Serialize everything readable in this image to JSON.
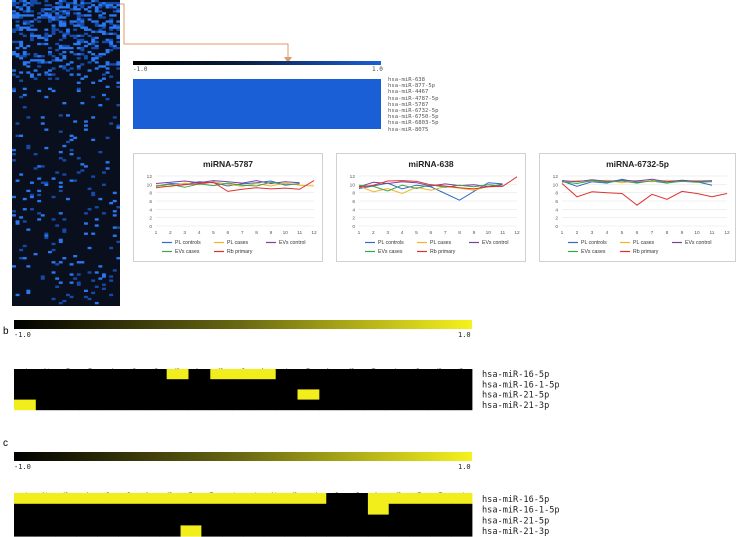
{
  "panel_b": {
    "letter": "b"
  },
  "panel_c": {
    "letter": "c"
  },
  "colors": {
    "heat_blue": "#1a5fd6",
    "heat_dark": "#0a0f1e",
    "heat_yellow": "#f2ee1c",
    "heat_black": "#000000",
    "arrow": "#e39a6a"
  },
  "chart_data": [
    {
      "type": "heatmap",
      "id": "panel-a-heatmap",
      "description_source": "large left heatmap, blue-black",
      "rows": 150,
      "cols": 30
    },
    {
      "type": "heatmap",
      "id": "panel-a-zoom",
      "scale": {
        "min_label": "-1.0",
        "max_label": "1.0"
      },
      "rows": [
        "hsa-miR-638",
        "hsa-miR-877-5p",
        "hsa-miR-4467",
        "hsa-miR-4787-5p",
        "hsa-miR-5787",
        "hsa-miR-6732-5p",
        "hsa-miR-6750-5p",
        "hsa-miR-6803-5p",
        "hsa-miR-8075"
      ]
    },
    {
      "type": "line",
      "id": "chart-5787",
      "title": "miRNA-5787",
      "x": [
        1,
        2,
        3,
        4,
        5,
        6,
        7,
        8,
        9,
        10,
        11,
        12
      ],
      "ylim": [
        0,
        12
      ],
      "yticks": [
        0,
        2,
        4,
        6,
        8,
        10,
        12
      ],
      "series": [
        {
          "name": "PL controls",
          "color": "#2f6ec2",
          "values": [
            9.5,
            10.2,
            10.0,
            10.6,
            10.4,
            9.6,
            10.1,
            10.4,
            10.8,
            9.8,
            10.2,
            null
          ]
        },
        {
          "name": "PL cases",
          "color": "#f0b429",
          "values": [
            9.8,
            9.4,
            10.3,
            9.9,
            10.6,
            10.0,
            9.5,
            10.2,
            9.6,
            10.3,
            9.8,
            9.6
          ]
        },
        {
          "name": "EVs control",
          "color": "#7b3fa0",
          "values": [
            10.2,
            10.5,
            10.8,
            10.4,
            10.9,
            10.6,
            10.3,
            10.9,
            10.2,
            10.6,
            10.4,
            null
          ]
        },
        {
          "name": "EVs cases",
          "color": "#3fa34d",
          "values": [
            9.6,
            10.0,
            9.3,
            10.1,
            9.7,
            10.3,
            9.8,
            9.6,
            10.5,
            9.9,
            10.1,
            null
          ]
        },
        {
          "name": "Rb primary",
          "color": "#e03131",
          "values": [
            9.2,
            9.6,
            9.9,
            10.2,
            10.5,
            8.3,
            8.8,
            9.2,
            8.9,
            9.1,
            8.8,
            10.9
          ]
        }
      ]
    },
    {
      "type": "line",
      "id": "chart-638",
      "title": "miRNA-638",
      "x": [
        1,
        2,
        3,
        4,
        5,
        6,
        7,
        8,
        9,
        10,
        11,
        12
      ],
      "ylim": [
        0,
        12
      ],
      "yticks": [
        0,
        2,
        4,
        6,
        8,
        10,
        12
      ],
      "series": [
        {
          "name": "PL controls",
          "color": "#2f6ec2",
          "values": [
            9.0,
            9.6,
            10.3,
            8.9,
            9.8,
            9.4,
            7.8,
            6.2,
            8.3,
            10.4,
            10.1,
            null
          ]
        },
        {
          "name": "PL cases",
          "color": "#f0b429",
          "values": [
            9.6,
            8.2,
            9.0,
            7.8,
            9.3,
            8.6,
            9.4,
            9.1,
            8.6,
            9.5,
            9.8,
            null
          ]
        },
        {
          "name": "EVs control",
          "color": "#7b3fa0",
          "values": [
            9.4,
            10.5,
            10.2,
            10.6,
            10.4,
            9.6,
            10.1,
            9.7,
            9.9,
            9.4,
            10.0,
            null
          ]
        },
        {
          "name": "EVs cases",
          "color": "#3fa34d",
          "values": [
            9.8,
            9.5,
            8.4,
            9.8,
            9.0,
            9.9,
            9.3,
            9.8,
            9.4,
            9.9,
            9.6,
            null
          ]
        },
        {
          "name": "Rb primary",
          "color": "#e03131",
          "values": [
            9.3,
            9.8,
            10.8,
            10.9,
            10.7,
            9.9,
            9.6,
            9.2,
            8.9,
            9.4,
            9.5,
            11.8
          ]
        }
      ]
    },
    {
      "type": "line",
      "id": "chart-6732",
      "title": "miRNA-6732-5p",
      "x": [
        1,
        2,
        3,
        4,
        5,
        6,
        7,
        8,
        9,
        10,
        11,
        12
      ],
      "ylim": [
        0,
        12
      ],
      "yticks": [
        0,
        2,
        4,
        6,
        8,
        10,
        12
      ],
      "series": [
        {
          "name": "PL controls",
          "color": "#2f6ec2",
          "values": [
            10.8,
            9.5,
            10.6,
            10.3,
            11.2,
            10.5,
            10.8,
            10.3,
            10.9,
            10.6,
            9.8,
            null
          ]
        },
        {
          "name": "PL cases",
          "color": "#f0b429",
          "values": [
            10.5,
            10.9,
            10.7,
            11.0,
            10.4,
            10.9,
            10.6,
            11.0,
            10.7,
            10.9,
            10.8,
            null
          ]
        },
        {
          "name": "EVs control",
          "color": "#7b3fa0",
          "values": [
            10.9,
            10.6,
            11.1,
            10.7,
            11.0,
            10.8,
            11.2,
            10.6,
            11.0,
            10.7,
            10.9,
            null
          ]
        },
        {
          "name": "EVs cases",
          "color": "#3fa34d",
          "values": [
            10.6,
            10.2,
            10.9,
            10.5,
            10.8,
            10.3,
            10.9,
            10.4,
            10.7,
            10.5,
            10.6,
            null
          ]
        },
        {
          "name": "Rb primary",
          "color": "#e03131",
          "values": [
            10.2,
            7.0,
            8.2,
            8.0,
            7.8,
            5.0,
            7.6,
            6.4,
            8.3,
            7.8,
            7.0,
            7.8
          ]
        }
      ]
    },
    {
      "type": "heatmap",
      "id": "panel-b-heatmap",
      "scale": {
        "min_label": "-1.0",
        "max_label": "1.0"
      },
      "columns": [
        "PF-1",
        "PF122",
        "PF189",
        "PF50",
        "PF54",
        "PF56",
        "PF66",
        "PF73",
        "PF77",
        "PF78",
        "PF85",
        "CF157",
        "CF164",
        "CF180",
        "CF187",
        "CF188",
        "CF190",
        "CF4",
        "CF66",
        "CF78",
        "CF86"
      ],
      "rows": [
        "hsa-miR-16-5p",
        "hsa-miR-16-1-5p",
        "hsa-miR-21-5p",
        "hsa-miR-21-3p"
      ],
      "values": [
        [
          0,
          0,
          0,
          0,
          0,
          0,
          0,
          1,
          0,
          1,
          1,
          1,
          0,
          0,
          0,
          0,
          0,
          0,
          0,
          0,
          0
        ],
        [
          0,
          0,
          0,
          0,
          0,
          0,
          0,
          0,
          0,
          0,
          0,
          0,
          0,
          0,
          0,
          0,
          0,
          0,
          0,
          0,
          0
        ],
        [
          0,
          0,
          0,
          0,
          0,
          0,
          0,
          0,
          0,
          0,
          0,
          0,
          0,
          1,
          0,
          0,
          0,
          0,
          0,
          0,
          0
        ],
        [
          1,
          0,
          0,
          0,
          0,
          0,
          0,
          0,
          0,
          0,
          0,
          0,
          0,
          0,
          0,
          0,
          0,
          0,
          0,
          0,
          0
        ]
      ]
    },
    {
      "type": "heatmap",
      "id": "panel-c-heatmap",
      "scale": {
        "min_label": "-1.0",
        "max_label": "1.0"
      },
      "columns": [
        "Px1",
        "Px2",
        "Px3",
        "Px4",
        "Px5",
        "Px6",
        "Px7",
        "Px8",
        "Px9",
        "Px10",
        "Px11",
        "Cx1",
        "Cx2",
        "Cx3",
        "Cx4",
        "Cx5",
        "Cx6",
        "Cx7",
        "Cx8",
        "Cx9",
        "Cx10",
        "C11"
      ],
      "rows": [
        "hsa-miR-16-5p",
        "hsa-miR-16-1-5p",
        "hsa-miR-21-5p",
        "hsa-miR-21-3p"
      ],
      "values": [
        [
          1,
          1,
          1,
          1,
          1,
          1,
          1,
          1,
          1,
          1,
          1,
          1,
          1,
          1,
          1,
          0,
          0,
          1,
          1,
          1,
          1,
          1
        ],
        [
          0,
          0,
          0,
          0,
          0,
          0,
          0,
          0,
          0,
          0,
          0,
          0,
          0,
          0,
          0,
          0,
          0,
          1,
          0,
          0,
          0,
          0
        ],
        [
          0,
          0,
          0,
          0,
          0,
          0,
          0,
          0,
          0,
          0,
          0,
          0,
          0,
          0,
          0,
          0,
          0,
          0,
          0,
          0,
          0,
          0
        ],
        [
          0,
          0,
          0,
          0,
          0,
          0,
          0,
          0,
          1,
          0,
          0,
          0,
          0,
          0,
          0,
          0,
          0,
          0,
          0,
          0,
          0,
          0
        ]
      ]
    }
  ]
}
